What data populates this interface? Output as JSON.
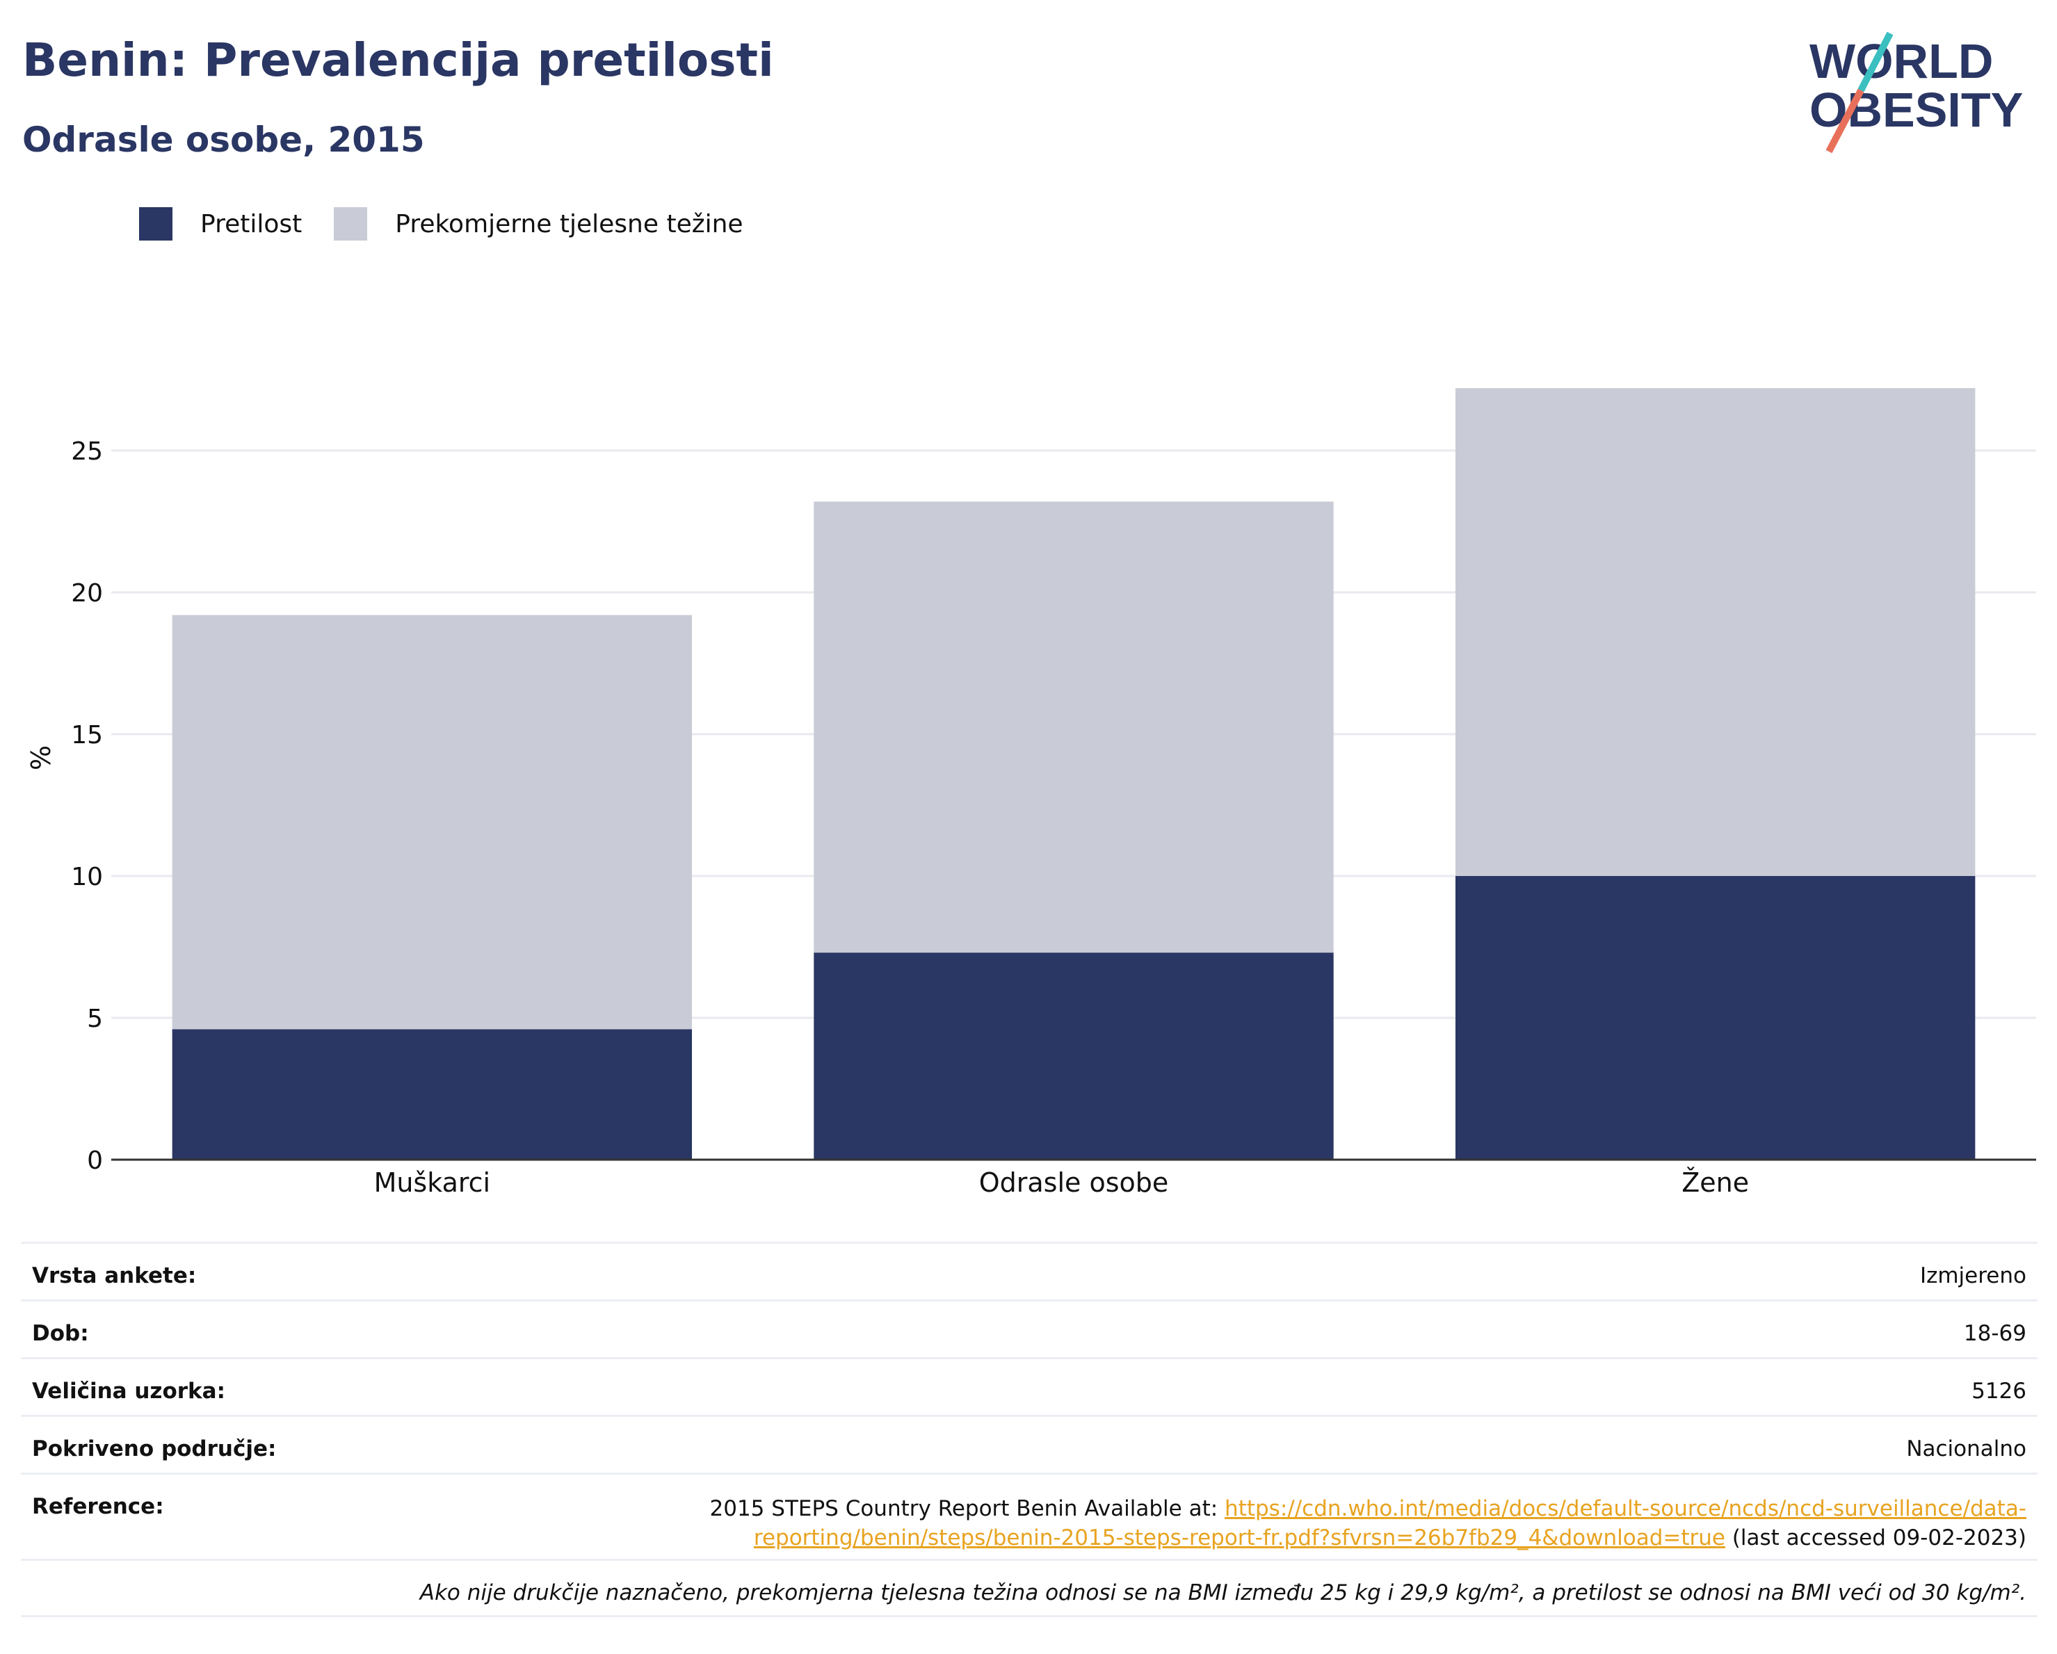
{
  "header": {
    "title": "Benin: Prevalencija pretilosti",
    "subtitle": "Odrasle osobe, 2015"
  },
  "logo": {
    "line1": "WORLD",
    "line2": "OBESITY"
  },
  "legend": [
    {
      "label": "Pretilost",
      "color": "#2a3663"
    },
    {
      "label": "Prekomjerne tjelesne težine",
      "color": "#c9cbd6"
    }
  ],
  "chart_data": {
    "type": "bar",
    "stacked": true,
    "categories": [
      "Muškarci",
      "Odrasle osobe",
      "Žene"
    ],
    "series": [
      {
        "name": "Pretilost",
        "color": "#2a3663",
        "values": [
          4.6,
          7.3,
          10.0
        ]
      },
      {
        "name": "Prekomjerne tjelesne težine",
        "color": "#c9cbd6",
        "values": [
          14.6,
          15.9,
          17.2
        ]
      }
    ],
    "ylabel": "%",
    "yticks": [
      0,
      5,
      10,
      15,
      20,
      25
    ],
    "ylim": [
      0,
      28.5
    ],
    "grid": true,
    "legend_position": "top-left"
  },
  "meta": {
    "survey_type_label": "Vrsta ankete:",
    "survey_type_value": "Izmjereno",
    "age_label": "Dob:",
    "age_value": "18-69",
    "sample_label": "Veličina uzorka:",
    "sample_value": "5126",
    "coverage_label": "Pokriveno područje:",
    "coverage_value": "Nacionalno",
    "reference_label": "Reference:",
    "reference_prefix": "2015 STEPS Country Report Benin Available at: ",
    "reference_link_1": "https://cdn.who.int/media/docs/default-source/ncds/ncd-surveillance/data-",
    "reference_link_2": "reporting/benin/steps/benin-2015-steps-report-fr.pdf?sfvrsn=26b7fb29_4&download=true",
    "reference_suffix": " (last accessed 09-02-2023)",
    "note": "Ako nije drukčije naznačeno, prekomjerna tjelesna težina odnosi se na BMI između 25 kg i 29,9 kg/m², a pretilost se odnosi na BMI veći od 30 kg/m²."
  }
}
